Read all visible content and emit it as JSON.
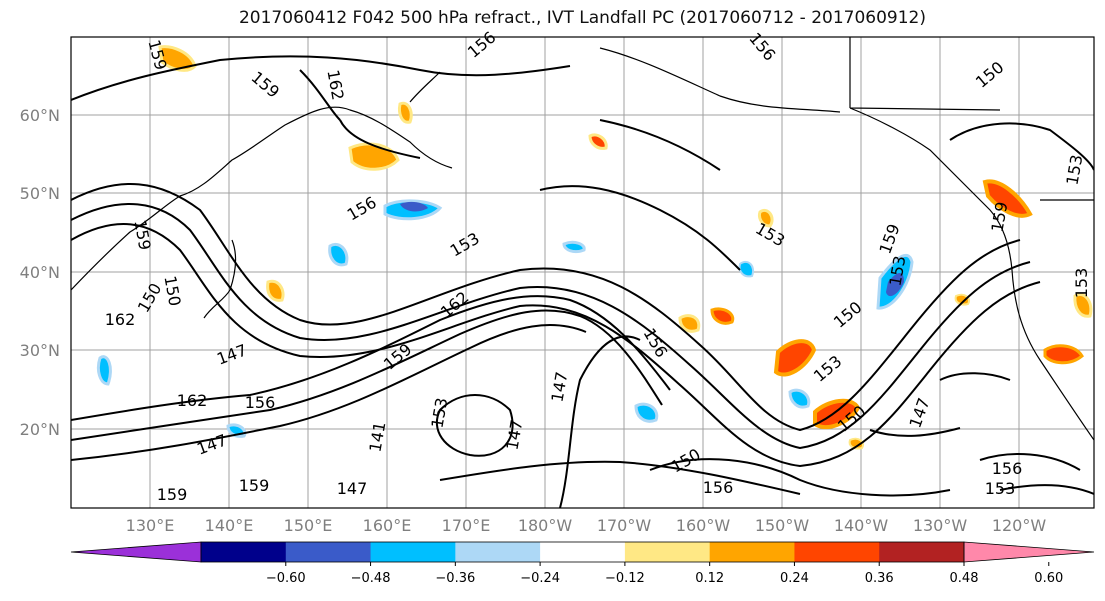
{
  "title": "2017060412 F042 500 hPa refract., IVT Landfall PC (2017060712 - 2017060912)",
  "lat_labels": [
    "60°N",
    "50°N",
    "40°N",
    "30°N",
    "20°N"
  ],
  "lon_labels": [
    "130°E",
    "140°E",
    "150°E",
    "160°E",
    "170°E",
    "180°W",
    "170°W",
    "160°W",
    "150°W",
    "140°W",
    "130°W",
    "120°W"
  ],
  "colorbar": {
    "colors": [
      "#9b30d9",
      "#00008b",
      "#3a5bc9",
      "#00bfff",
      "#add8f6",
      "#ffffff",
      "#ffe885",
      "#ffa500",
      "#ff4500",
      "#b22222",
      "#ff88aa"
    ],
    "ticks": [
      "−0.60",
      "−0.48",
      "−0.36",
      "−0.24",
      "−0.12",
      "0.12",
      "0.24",
      "0.36",
      "0.48",
      "0.60"
    ]
  },
  "contour_labels": [
    "159",
    "162",
    "159",
    "156",
    "156",
    "150",
    "156",
    "153",
    "153",
    "159",
    "159",
    "153",
    "153",
    "150",
    "153",
    "150",
    "147",
    "162",
    "147",
    "159",
    "162",
    "147",
    "153",
    "147",
    "156",
    "141",
    "150",
    "156",
    "147",
    "150",
    "156",
    "153",
    "162",
    "159",
    "159",
    "147",
    "159",
    "150",
    "156",
    "153"
  ]
}
